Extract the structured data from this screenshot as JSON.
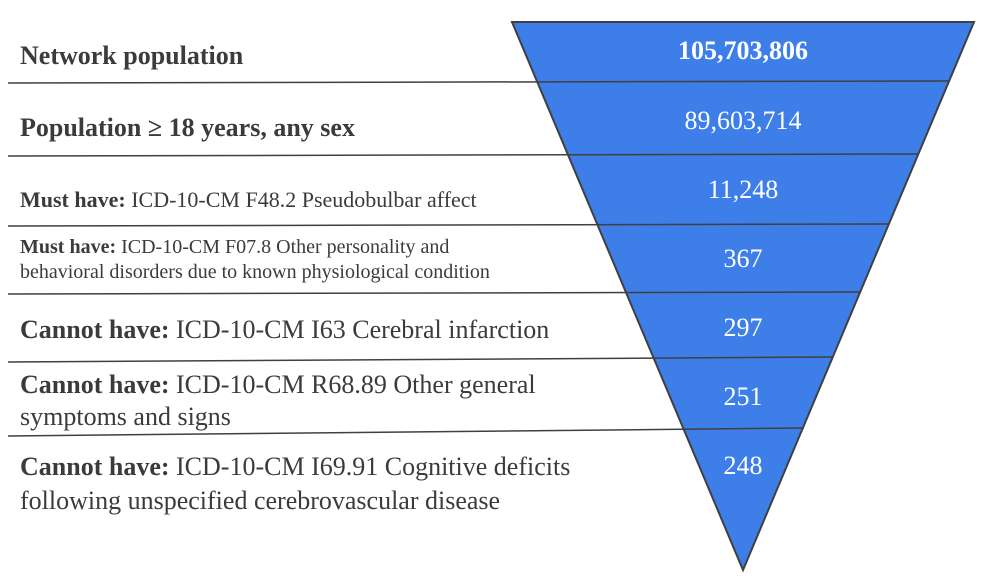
{
  "colors": {
    "funnel_fill": "#3d7ee8",
    "funnel_stroke": "#404040",
    "divider": "#404040",
    "value_text": "#ffffff",
    "label_text": "#3b3b3b"
  },
  "rows": [
    {
      "prefix": "Network population",
      "text": "",
      "value": "105,703,806"
    },
    {
      "prefix": "Population ≥ 18 years, any sex",
      "text": "",
      "value": "89,603,714"
    },
    {
      "prefix": "Must have:",
      "text": " ICD-10-CM F48.2 Pseudobulbar affect",
      "value": "11,248"
    },
    {
      "prefix": "Must have:",
      "text": " ICD-10-CM F07.8 Other personality and",
      "text2": "behavioral disorders due to known physiological condition",
      "value": "367"
    },
    {
      "prefix": "Cannot have:",
      "text": " ICD-10-CM I63 Cerebral infarction",
      "value": "297"
    },
    {
      "prefix": "Cannot have:",
      "text": " ICD-10-CM R68.89 Other general",
      "text2": "symptoms and signs",
      "value": "251"
    },
    {
      "prefix": "Cannot have:",
      "text": " ICD-10-CM I69.91 Cognitive deficits",
      "text2": "following unspecified cerebrovascular disease",
      "value": "248"
    }
  ]
}
